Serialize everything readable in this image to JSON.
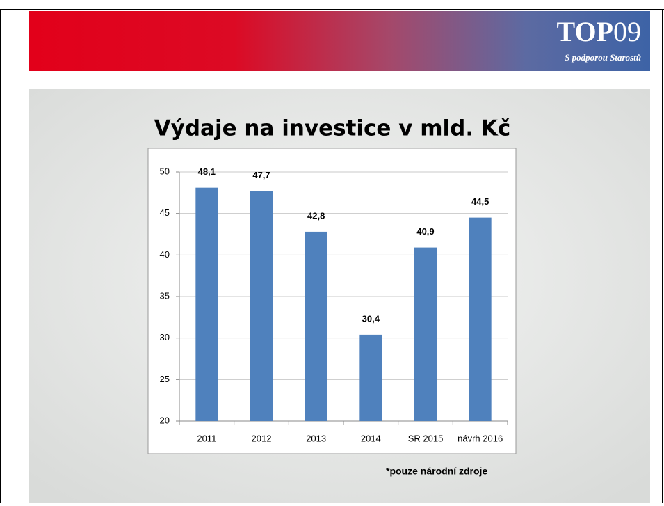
{
  "header": {
    "logo": {
      "main": "TOP",
      "number": "09"
    },
    "tagline": "S podporou Starostů"
  },
  "chart_data": {
    "type": "bar",
    "title": "Výdaje na investice v mld. Kč",
    "categories": [
      "2011",
      "2012",
      "2013",
      "2014",
      "SR 2015",
      "návrh 2016"
    ],
    "values": [
      48.1,
      47.7,
      42.8,
      30.4,
      40.9,
      44.5
    ],
    "value_labels": [
      "48,1",
      "47,7",
      "42,8",
      "30,4",
      "40,9",
      "44,5"
    ],
    "color": "#4f81bd",
    "ylim": [
      20,
      50
    ],
    "yticks": [
      20,
      25,
      30,
      35,
      40,
      45,
      50
    ],
    "grid": true
  },
  "footnote": "*pouze národní zdroje"
}
